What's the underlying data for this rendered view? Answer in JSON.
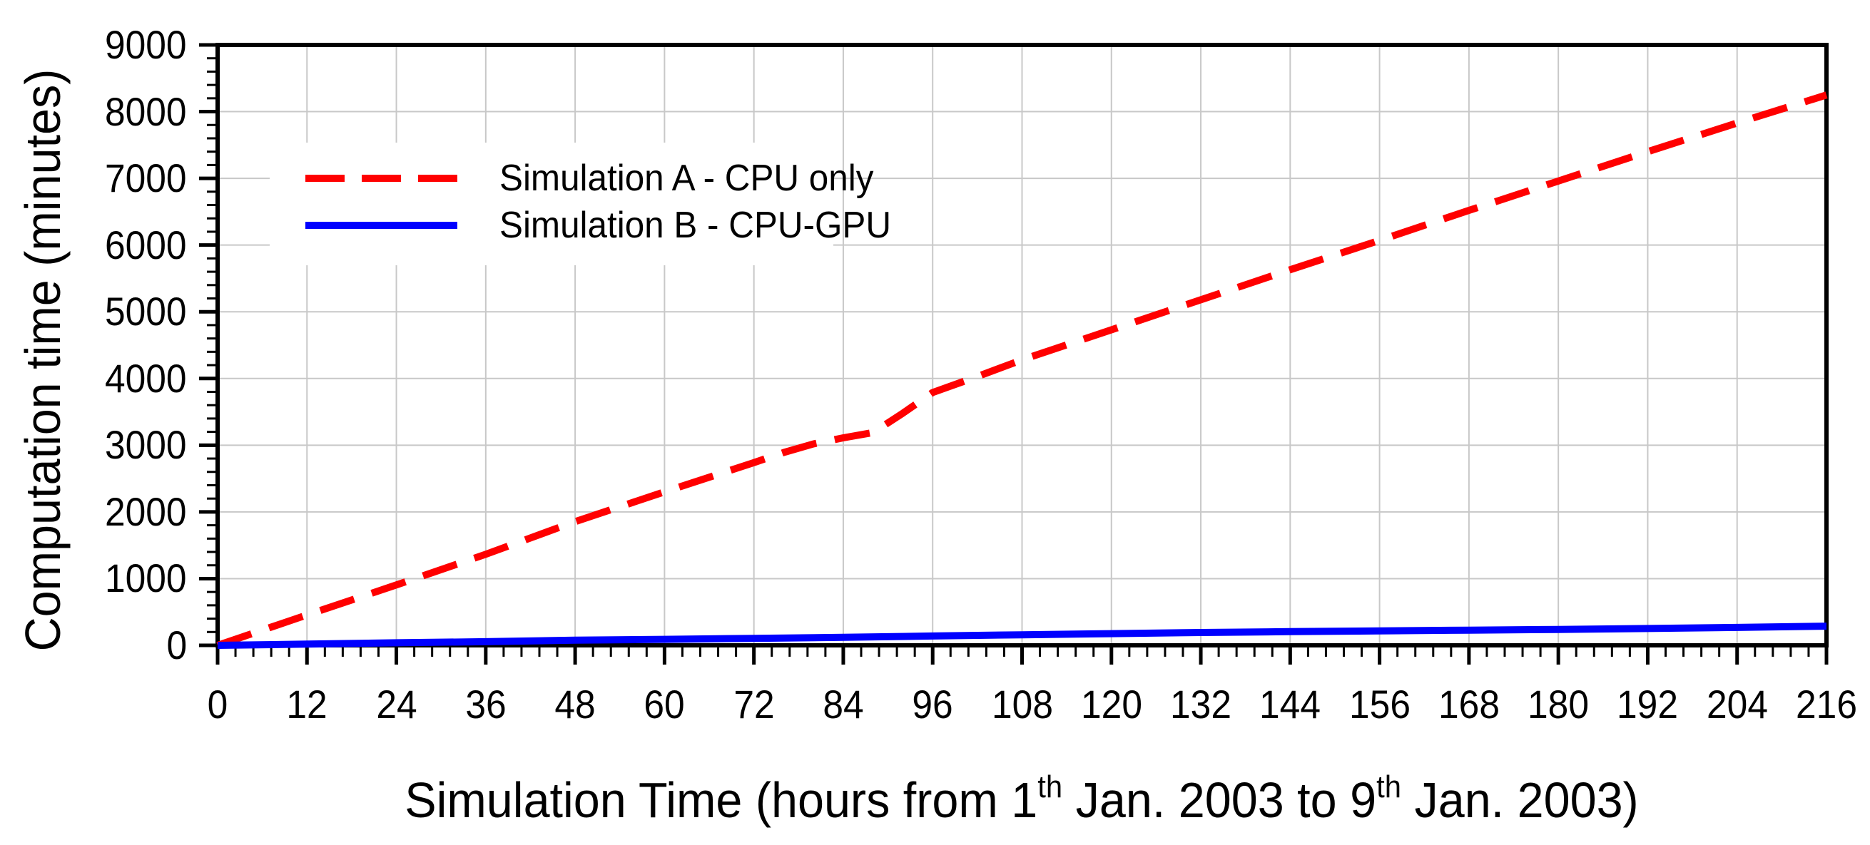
{
  "chart_data": {
    "type": "line",
    "title": "",
    "ylabel": "Computation time (minutes)",
    "xlabel": "Simulation Time (hours from 1th Jan. 2003 to 9th Jan. 2003)",
    "xlabel_parts": [
      "Simulation Time (hours from 1",
      "th",
      " Jan. 2003 to 9",
      "th",
      " Jan. 2003)"
    ],
    "x_axis": {
      "min": 0,
      "max": 216,
      "major_step": 12,
      "minors_per_major": 4,
      "tick_labels": [
        0,
        12,
        24,
        36,
        48,
        60,
        72,
        84,
        96,
        108,
        120,
        132,
        144,
        156,
        168,
        180,
        192,
        204,
        216
      ]
    },
    "y_axis": {
      "min": 0,
      "max": 9000,
      "major_step": 1000,
      "minors_per_major": 4,
      "tick_labels": [
        0,
        1000,
        2000,
        3000,
        4000,
        5000,
        6000,
        7000,
        8000,
        9000
      ]
    },
    "grid": {
      "show": true,
      "color": "#c8c8c8"
    },
    "legend_position": "upper-left",
    "series": [
      {
        "name": "Simulation A - CPU only",
        "color": "#ff0000",
        "style": "dashed",
        "points": [
          [
            0,
            0
          ],
          [
            12,
            455
          ],
          [
            24,
            905
          ],
          [
            36,
            1365
          ],
          [
            48,
            1855
          ],
          [
            60,
            2300
          ],
          [
            72,
            2740
          ],
          [
            76,
            2890
          ],
          [
            80,
            3020
          ],
          [
            84,
            3110
          ],
          [
            88,
            3190
          ],
          [
            92,
            3480
          ],
          [
            96,
            3790
          ],
          [
            102,
            4030
          ],
          [
            108,
            4280
          ],
          [
            120,
            4730
          ],
          [
            132,
            5180
          ],
          [
            144,
            5630
          ],
          [
            156,
            6070
          ],
          [
            168,
            6520
          ],
          [
            180,
            6960
          ],
          [
            192,
            7400
          ],
          [
            204,
            7830
          ],
          [
            216,
            8250
          ]
        ]
      },
      {
        "name": "Simulation B - CPU-GPU",
        "color": "#0000ff",
        "style": "solid",
        "points": [
          [
            0,
            0
          ],
          [
            12,
            18
          ],
          [
            24,
            38
          ],
          [
            36,
            55
          ],
          [
            48,
            78
          ],
          [
            60,
            90
          ],
          [
            72,
            105
          ],
          [
            84,
            120
          ],
          [
            96,
            140
          ],
          [
            108,
            158
          ],
          [
            120,
            175
          ],
          [
            132,
            192
          ],
          [
            144,
            205
          ],
          [
            156,
            216
          ],
          [
            168,
            228
          ],
          [
            180,
            238
          ],
          [
            192,
            252
          ],
          [
            204,
            268
          ],
          [
            216,
            288
          ]
        ]
      }
    ]
  }
}
